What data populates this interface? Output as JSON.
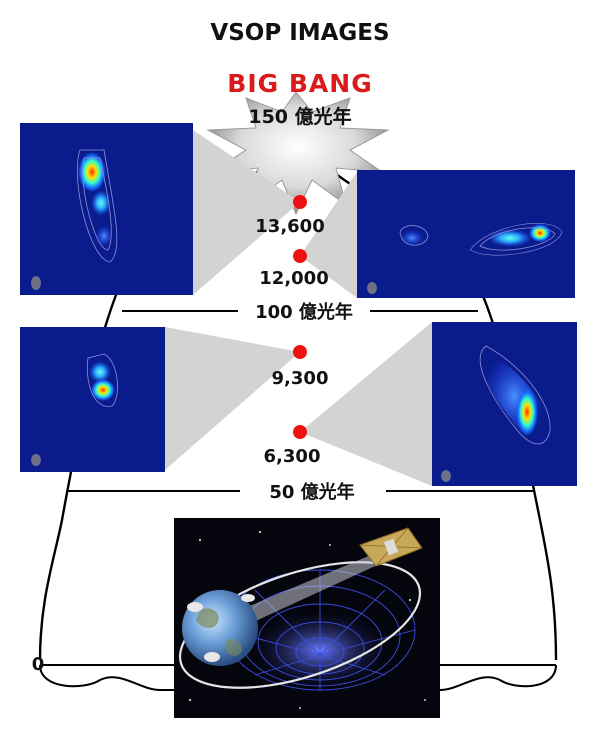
{
  "title": "VSOP IMAGES",
  "big_bang": "BIG BANG",
  "scale_labels": {
    "top": "150 億光年",
    "middle": "100 億光年",
    "bottom": "50 億光年",
    "zero": "0"
  },
  "sources": [
    {
      "distance": "13,600"
    },
    {
      "distance": "12,000"
    },
    {
      "distance": "9,300"
    },
    {
      "distance": "6,300"
    }
  ],
  "colors": {
    "marker": "#ee1111",
    "big_bang_text": "#dd1a1a",
    "panel_bg": "#0a1c8c",
    "wedge": "#d3d3d3"
  }
}
